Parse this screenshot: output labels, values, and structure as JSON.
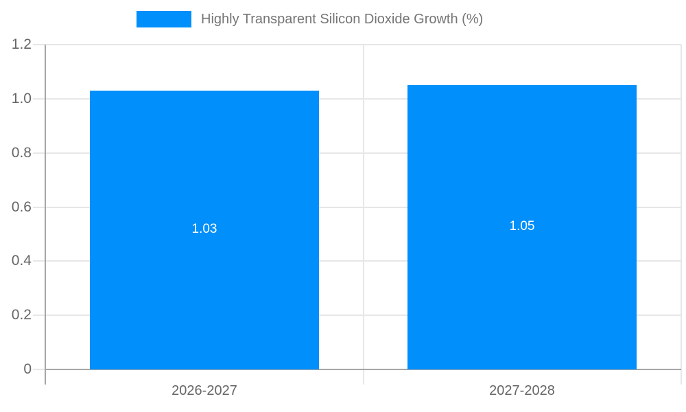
{
  "legend": {
    "label": "Highly Transparent Silicon Dioxide Growth (%)",
    "swatch_color": "#008FFB"
  },
  "colors": {
    "bar": "#008FFB",
    "grid": "#e7e7e7",
    "axis": "#a6a6a6",
    "tick_label": "#666666",
    "legend_text": "#757575",
    "bar_label": "#ffffff",
    "background": "#ffffff"
  },
  "chart_data": {
    "type": "bar",
    "title": "Highly Transparent Silicon Dioxide Growth (%)",
    "categories": [
      "2026-2027",
      "2027-2028"
    ],
    "values": [
      1.03,
      1.05
    ],
    "value_labels": [
      "1.03",
      "1.05"
    ],
    "xlabel": "",
    "ylabel": "",
    "ylim": [
      0,
      1.2
    ],
    "yticks": [
      0,
      0.2,
      0.4,
      0.6,
      0.8,
      1,
      1.2
    ],
    "ytick_labels": [
      "0",
      "0.2",
      "0.4",
      "0.6",
      "0.8",
      "1.0",
      "1.2"
    ],
    "grid": true,
    "legend_position": "top",
    "bar_label_position": "center"
  }
}
